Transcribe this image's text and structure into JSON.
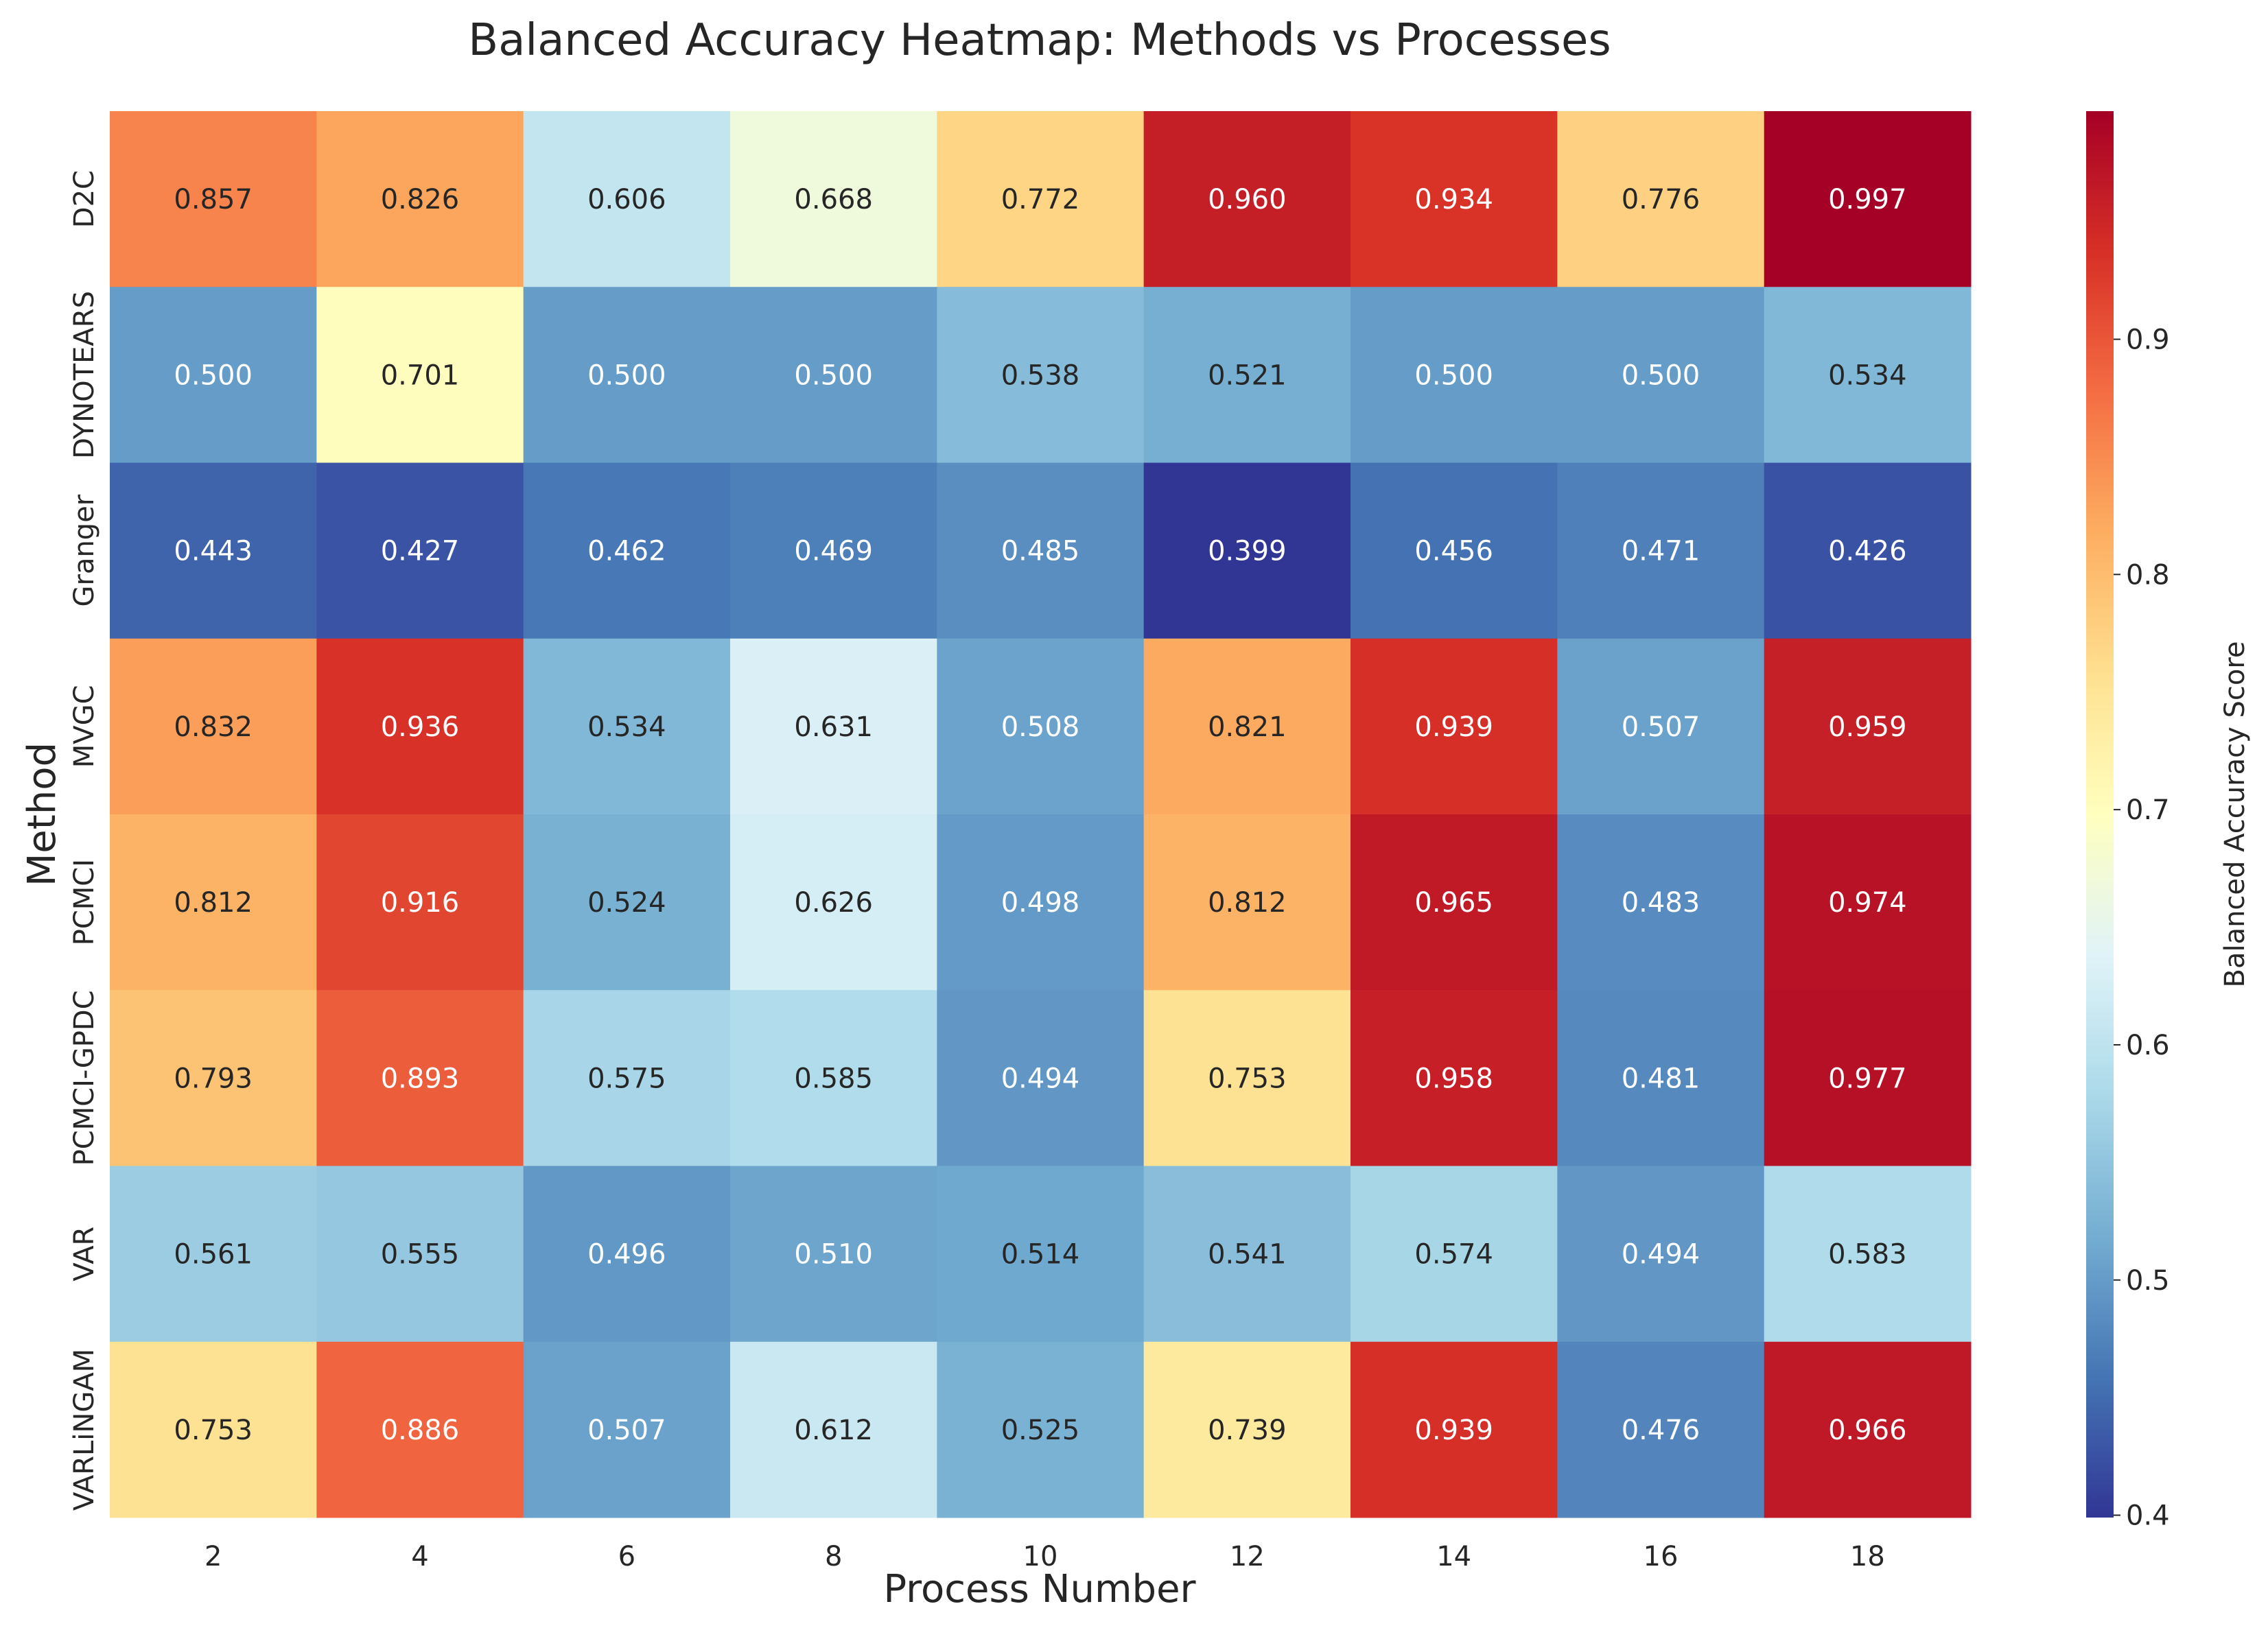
{
  "chart_data": {
    "type": "heatmap",
    "title": "Balanced Accuracy Heatmap: Methods vs Processes",
    "xlabel": "Process Number",
    "ylabel": "Method",
    "x_categories": [
      "2",
      "4",
      "6",
      "8",
      "10",
      "12",
      "14",
      "16",
      "18"
    ],
    "y_categories": [
      "D2C",
      "DYNOTEARS",
      "Granger",
      "MVGC",
      "PCMCI",
      "PCMCI-GPDC",
      "VAR",
      "VARLiNGAM"
    ],
    "values": [
      [
        0.857,
        0.826,
        0.606,
        0.668,
        0.772,
        0.96,
        0.934,
        0.776,
        0.997
      ],
      [
        0.5,
        0.701,
        0.5,
        0.5,
        0.538,
        0.521,
        0.5,
        0.5,
        0.534
      ],
      [
        0.443,
        0.427,
        0.462,
        0.469,
        0.485,
        0.399,
        0.456,
        0.471,
        0.426
      ],
      [
        0.832,
        0.936,
        0.534,
        0.631,
        0.508,
        0.821,
        0.939,
        0.507,
        0.959
      ],
      [
        0.812,
        0.916,
        0.524,
        0.626,
        0.498,
        0.812,
        0.965,
        0.483,
        0.974
      ],
      [
        0.793,
        0.893,
        0.575,
        0.585,
        0.494,
        0.753,
        0.958,
        0.481,
        0.977
      ],
      [
        0.561,
        0.555,
        0.496,
        0.51,
        0.514,
        0.541,
        0.574,
        0.494,
        0.583
      ],
      [
        0.753,
        0.886,
        0.507,
        0.612,
        0.525,
        0.739,
        0.939,
        0.476,
        0.966
      ]
    ],
    "value_format": "3 decimals",
    "colormap": "RdYlBu_r",
    "colormap_stops": [
      "#313695",
      "#4575b4",
      "#74add1",
      "#abd9e9",
      "#e0f3f8",
      "#ffffbf",
      "#fee090",
      "#fdae61",
      "#f46d43",
      "#d73027",
      "#a50026"
    ],
    "colorbar": {
      "label": "Balanced Accuracy Score",
      "range": [
        0.399,
        0.997
      ],
      "ticks": [
        "0.4",
        "0.5",
        "0.6",
        "0.7",
        "0.8",
        "0.9"
      ],
      "tick_values": [
        0.4,
        0.5,
        0.6,
        0.7,
        0.8,
        0.9
      ]
    },
    "grid": false,
    "legend": "colorbar-right"
  }
}
